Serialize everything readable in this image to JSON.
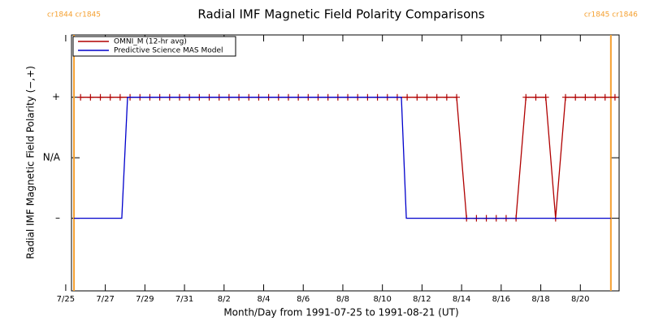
{
  "chart_data": {
    "type": "line",
    "title": "Radial IMF Magnetic Field Polarity Comparisons",
    "xlabel": "Month/Day from 1991-07-25 to 1991-08-21 (UT)",
    "ylabel": "Radial IMF Magnetic Field Polarity (−,+)",
    "xlim": [
      "1991-07-25T07:00",
      "1991-08-21T23:00"
    ],
    "xticks": [
      {
        "value": "1991-07-25T00:00",
        "label": "7/25"
      },
      {
        "value": "1991-07-27T00:00",
        "label": "7/27"
      },
      {
        "value": "1991-07-29T00:00",
        "label": "7/29"
      },
      {
        "value": "1991-07-31T00:00",
        "label": "7/31"
      },
      {
        "value": "1991-08-02T00:00",
        "label": "8/2"
      },
      {
        "value": "1991-08-04T00:00",
        "label": "8/4"
      },
      {
        "value": "1991-08-06T00:00",
        "label": "8/6"
      },
      {
        "value": "1991-08-08T00:00",
        "label": "8/8"
      },
      {
        "value": "1991-08-10T00:00",
        "label": "8/10"
      },
      {
        "value": "1991-08-12T00:00",
        "label": "8/12"
      },
      {
        "value": "1991-08-14T00:00",
        "label": "8/14"
      },
      {
        "value": "1991-08-16T00:00",
        "label": "8/16"
      },
      {
        "value": "1991-08-18T00:00",
        "label": "8/18"
      },
      {
        "value": "1991-08-20T00:00",
        "label": "8/20"
      }
    ],
    "ylim": [
      -2.2,
      2.03
    ],
    "yticks": [
      {
        "value": -1,
        "label": "–"
      },
      {
        "value": 0,
        "label": "N/A"
      },
      {
        "value": 1,
        "label": "+"
      }
    ],
    "legend": "upper left",
    "annotations": [
      {
        "text": "cr1844 cr1845",
        "x": "1991-07-25T10:00",
        "color": "#f5a030"
      },
      {
        "text": "cr1845 cr1846",
        "x": "1991-08-21T13:00",
        "color": "#f5a030"
      }
    ],
    "series": [
      {
        "name": "OMNI_M (12-hr avg)",
        "color": "#b00000",
        "marker": "+",
        "x": [
          "1991-07-25T18:00",
          "1991-07-26T06:00",
          "1991-07-26T18:00",
          "1991-07-27T06:00",
          "1991-07-27T18:00",
          "1991-07-28T06:00",
          "1991-07-28T18:00",
          "1991-07-29T06:00",
          "1991-07-29T18:00",
          "1991-07-30T06:00",
          "1991-07-30T18:00",
          "1991-07-31T06:00",
          "1991-07-31T18:00",
          "1991-08-01T06:00",
          "1991-08-01T18:00",
          "1991-08-02T06:00",
          "1991-08-02T18:00",
          "1991-08-03T06:00",
          "1991-08-03T18:00",
          "1991-08-04T06:00",
          "1991-08-04T18:00",
          "1991-08-05T06:00",
          "1991-08-05T18:00",
          "1991-08-06T06:00",
          "1991-08-06T18:00",
          "1991-08-07T06:00",
          "1991-08-07T18:00",
          "1991-08-08T06:00",
          "1991-08-08T18:00",
          "1991-08-09T06:00",
          "1991-08-09T18:00",
          "1991-08-10T06:00",
          "1991-08-10T18:00",
          "1991-08-11T06:00",
          "1991-08-11T18:00",
          "1991-08-12T06:00",
          "1991-08-12T18:00",
          "1991-08-13T06:00",
          "1991-08-13T18:00",
          "1991-08-14T06:00",
          "1991-08-14T18:00",
          "1991-08-15T06:00",
          "1991-08-15T18:00",
          "1991-08-16T06:00",
          "1991-08-16T18:00",
          "1991-08-17T06:00",
          "1991-08-17T18:00",
          "1991-08-18T06:00",
          "1991-08-18T18:00",
          "1991-08-19T06:00",
          "1991-08-19T18:00",
          "1991-08-20T06:00",
          "1991-08-20T18:00",
          "1991-08-21T06:00",
          "1991-08-21T18:00"
        ],
        "values": [
          1,
          1,
          1,
          1,
          1,
          1,
          1,
          1,
          1,
          1,
          1,
          1,
          1,
          1,
          1,
          1,
          1,
          1,
          1,
          1,
          1,
          1,
          1,
          1,
          1,
          1,
          1,
          1,
          1,
          1,
          1,
          1,
          1,
          1,
          1,
          1,
          1,
          1,
          1,
          -1,
          -1,
          -1,
          -1,
          -1,
          -1,
          1,
          1,
          1,
          -1,
          1,
          1,
          1,
          1,
          1,
          1
        ]
      },
      {
        "name": "Predictive Science MAS Model",
        "color": "#0000cc",
        "x": [
          "1991-07-25T10:00",
          "1991-07-27T20:00",
          "1991-07-28T03:00",
          "1991-08-10T23:00",
          "1991-08-11T05:00",
          "1991-08-21T13:00"
        ],
        "values": [
          -1,
          -1,
          1,
          1,
          -1,
          -1
        ]
      }
    ]
  }
}
